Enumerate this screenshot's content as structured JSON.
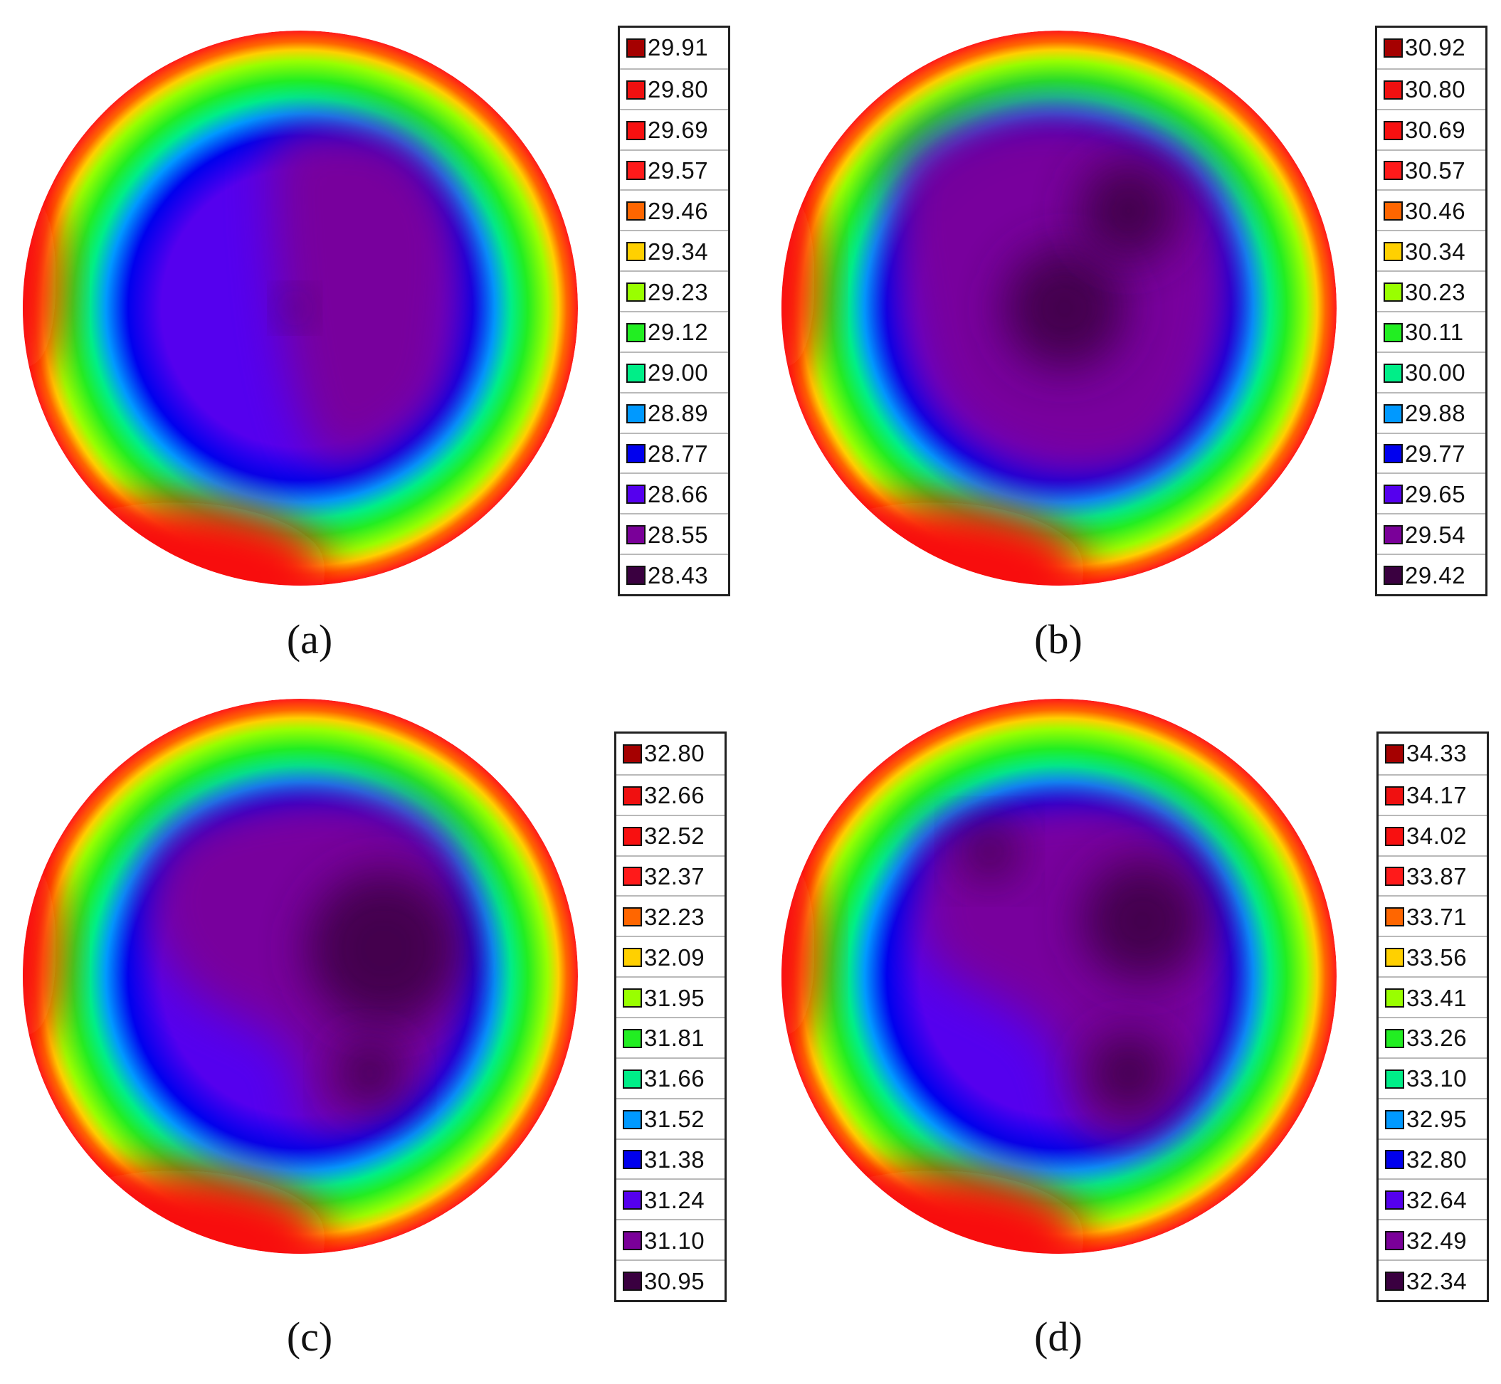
{
  "chart_data": [
    {
      "type": "heatmap",
      "panel_label": "(a)",
      "legend_values": [
        "29.91",
        "29.80",
        "29.69",
        "29.57",
        "29.46",
        "29.34",
        "29.23",
        "29.12",
        "29.00",
        "28.89",
        "28.77",
        "28.66",
        "28.55",
        "28.43"
      ],
      "colorscale": [
        "#a50000",
        "#f01010",
        "#f81010",
        "#ff1a1a",
        "#ff6600",
        "#ffd000",
        "#99ff00",
        "#22ee22",
        "#00ee88",
        "#0099ff",
        "#0000ee",
        "#5500ee",
        "#7a0099",
        "#3a0040"
      ],
      "value_range": [
        28.43,
        29.91
      ]
    },
    {
      "type": "heatmap",
      "panel_label": "(b)",
      "legend_values": [
        "30.92",
        "30.80",
        "30.69",
        "30.57",
        "30.46",
        "30.34",
        "30.23",
        "30.11",
        "30.00",
        "29.88",
        "29.77",
        "29.65",
        "29.54",
        "29.42"
      ],
      "colorscale": [
        "#a50000",
        "#f01010",
        "#f81010",
        "#ff1a1a",
        "#ff6600",
        "#ffd000",
        "#99ff00",
        "#22ee22",
        "#00ee88",
        "#0099ff",
        "#0000ee",
        "#5500ee",
        "#7a0099",
        "#3a0040"
      ],
      "value_range": [
        29.42,
        30.92
      ]
    },
    {
      "type": "heatmap",
      "panel_label": "(c)",
      "legend_values": [
        "32.80",
        "32.66",
        "32.52",
        "32.37",
        "32.23",
        "32.09",
        "31.95",
        "31.81",
        "31.66",
        "31.52",
        "31.38",
        "31.24",
        "31.10",
        "30.95"
      ],
      "colorscale": [
        "#a50000",
        "#f01010",
        "#f81010",
        "#ff1a1a",
        "#ff6600",
        "#ffd000",
        "#99ff00",
        "#22ee22",
        "#00ee88",
        "#0099ff",
        "#0000ee",
        "#5500ee",
        "#7a0099",
        "#3a0040"
      ],
      "value_range": [
        30.95,
        32.8
      ]
    },
    {
      "type": "heatmap",
      "panel_label": "(d)",
      "legend_values": [
        "34.33",
        "34.17",
        "34.02",
        "33.87",
        "33.71",
        "33.56",
        "33.41",
        "33.26",
        "33.10",
        "32.95",
        "32.80",
        "32.64",
        "32.49",
        "32.34"
      ],
      "colorscale": [
        "#a50000",
        "#f01010",
        "#f81010",
        "#ff1a1a",
        "#ff6600",
        "#ffd000",
        "#99ff00",
        "#22ee22",
        "#00ee88",
        "#0099ff",
        "#0000ee",
        "#5500ee",
        "#7a0099",
        "#3a0040"
      ],
      "value_range": [
        32.34,
        34.33
      ]
    }
  ]
}
